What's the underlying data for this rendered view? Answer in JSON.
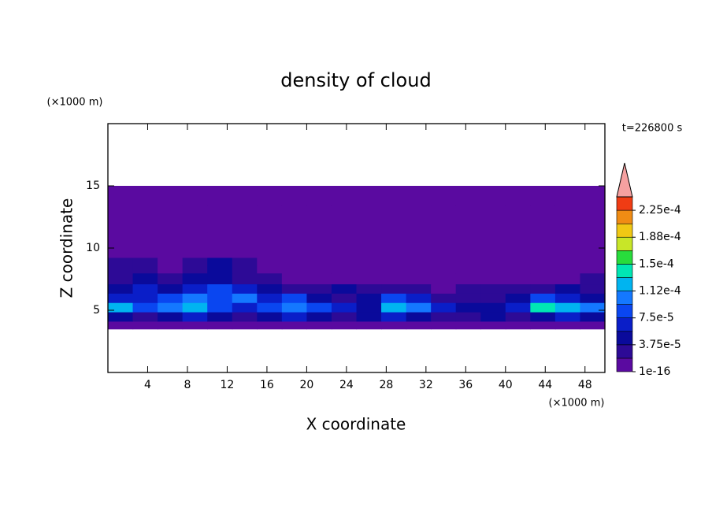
{
  "chart_data": {
    "type": "contour",
    "title": "density of cloud",
    "x_label": "X coordinate",
    "y_label": "Z coordinate",
    "x_unit": "(×1000 m)",
    "y_unit": "(×1000 m)",
    "annotation": "t=226800 s",
    "xlim": [
      0,
      50
    ],
    "ylim": [
      0,
      20
    ],
    "xticks": [
      4,
      8,
      12,
      16,
      20,
      24,
      28,
      32,
      36,
      40,
      44,
      48
    ],
    "yticks": [
      5,
      10,
      15
    ],
    "x": [
      1.25,
      3.75,
      6.25,
      8.75,
      11.25,
      13.75,
      16.25,
      18.75,
      21.25,
      23.75,
      26.25,
      28.75,
      31.25,
      33.75,
      36.25,
      38.75,
      41.25,
      43.75,
      46.25,
      48.75
    ],
    "y": [
      3.25,
      3.75,
      4.5,
      5.25,
      6,
      6.75,
      7.5,
      8.5,
      10,
      12.5,
      14.5,
      15.5
    ],
    "z": [
      [
        0,
        0,
        0,
        0,
        0,
        0,
        0,
        0,
        0,
        0,
        0,
        0,
        0,
        0,
        0,
        0,
        0,
        0,
        0,
        0
      ],
      [
        5e-06,
        5e-06,
        5e-06,
        5e-06,
        5e-06,
        5e-06,
        5e-06,
        5e-06,
        5e-06,
        5e-06,
        5e-06,
        5e-06,
        5e-06,
        5e-06,
        5e-06,
        5e-06,
        5e-06,
        5e-06,
        5e-06,
        5e-06
      ],
      [
        4.5e-05,
        2.5e-05,
        4.5e-05,
        6.5e-05,
        4.5e-05,
        2.5e-05,
        4.5e-05,
        6.5e-05,
        4.5e-05,
        2.5e-05,
        4.5e-05,
        6.5e-05,
        4.5e-05,
        2.5e-05,
        2.5e-05,
        4.5e-05,
        2.5e-05,
        4.5e-05,
        6.5e-05,
        4.5e-05
      ],
      [
        0.00012,
        8.5e-05,
        0.0001,
        0.00012,
        8.5e-05,
        6.5e-05,
        8.5e-05,
        0.0001,
        8.5e-05,
        6.5e-05,
        4.5e-05,
        0.00012,
        0.0001,
        6.5e-05,
        4.5e-05,
        4.5e-05,
        6.5e-05,
        0.00014,
        0.00012,
        0.0001
      ],
      [
        6.5e-05,
        6.5e-05,
        8.5e-05,
        0.0001,
        8.5e-05,
        0.0001,
        6.5e-05,
        8.5e-05,
        4.5e-05,
        2.5e-05,
        4.5e-05,
        8.5e-05,
        6.5e-05,
        2.5e-05,
        2.5e-05,
        2.5e-05,
        4.5e-05,
        8.5e-05,
        6.5e-05,
        4.5e-05
      ],
      [
        4.5e-05,
        6.5e-05,
        4.5e-05,
        6.5e-05,
        8.5e-05,
        6.5e-05,
        4.5e-05,
        2.5e-05,
        2.5e-05,
        4.5e-05,
        2.5e-05,
        2.5e-05,
        2.5e-05,
        5e-06,
        2.5e-05,
        2.5e-05,
        2.5e-05,
        2.5e-05,
        4.5e-05,
        2.5e-05
      ],
      [
        2.5e-05,
        4.5e-05,
        2.5e-05,
        4.5e-05,
        4.5e-05,
        2.5e-05,
        2.5e-05,
        5e-06,
        5e-06,
        5e-06,
        5e-06,
        5e-06,
        5e-06,
        5e-06,
        5e-06,
        5e-06,
        5e-06,
        5e-06,
        5e-06,
        2.5e-05
      ],
      [
        2.5e-05,
        2.5e-05,
        5e-06,
        2.5e-05,
        4.5e-05,
        2.5e-05,
        5e-06,
        5e-06,
        5e-06,
        5e-06,
        5e-06,
        5e-06,
        5e-06,
        5e-06,
        5e-06,
        5e-06,
        5e-06,
        5e-06,
        5e-06,
        5e-06
      ],
      [
        5e-06,
        5e-06,
        5e-06,
        5e-06,
        5e-06,
        5e-06,
        5e-06,
        5e-06,
        5e-06,
        5e-06,
        5e-06,
        5e-06,
        5e-06,
        5e-06,
        5e-06,
        5e-06,
        5e-06,
        5e-06,
        5e-06,
        5e-06
      ],
      [
        5e-06,
        5e-06,
        5e-06,
        5e-06,
        5e-06,
        5e-06,
        5e-06,
        5e-06,
        5e-06,
        5e-06,
        5e-06,
        5e-06,
        5e-06,
        5e-06,
        5e-06,
        5e-06,
        5e-06,
        5e-06,
        5e-06,
        5e-06
      ],
      [
        5e-06,
        5e-06,
        5e-06,
        5e-06,
        5e-06,
        5e-06,
        5e-06,
        5e-06,
        5e-06,
        5e-06,
        5e-06,
        5e-06,
        5e-06,
        5e-06,
        5e-06,
        5e-06,
        5e-06,
        5e-06,
        5e-06,
        5e-06
      ],
      [
        0,
        0,
        0,
        0,
        0,
        0,
        0,
        0,
        0,
        0,
        0,
        0,
        0,
        0,
        0,
        0,
        0,
        0,
        0,
        0
      ]
    ],
    "levels": [
      1e-16,
      1.875e-05,
      3.75e-05,
      5.625e-05,
      7.5e-05,
      9.375e-05,
      0.0001125,
      0.00013125,
      0.00015,
      0.00016875,
      0.0001875,
      0.00020625,
      0.000225,
      0.00024375
    ],
    "colors": [
      "#5a0aa0",
      "#2d0a96",
      "#0a0a9b",
      "#0a1ec8",
      "#0a46f0",
      "#1478ff",
      "#00b4f0",
      "#00e6b4",
      "#28dc3c",
      "#c8e628",
      "#f0c814",
      "#f08c14",
      "#f03c14"
    ],
    "extend_color": "#f5a0a0",
    "colorbar_ticks": [
      1e-16,
      {
        "value": 3.75e-05,
        "label": "3.75e-5"
      },
      {
        "value": 7.5e-05,
        "label": "7.5e-5"
      },
      {
        "value": 0.0001125,
        "label": "1.12e-4"
      },
      {
        "value": 0.00015,
        "label": "1.5e-4"
      },
      {
        "value": 0.0001875,
        "label": "1.88e-4"
      },
      {
        "value": 0.000225,
        "label": "2.25e-4"
      }
    ]
  }
}
